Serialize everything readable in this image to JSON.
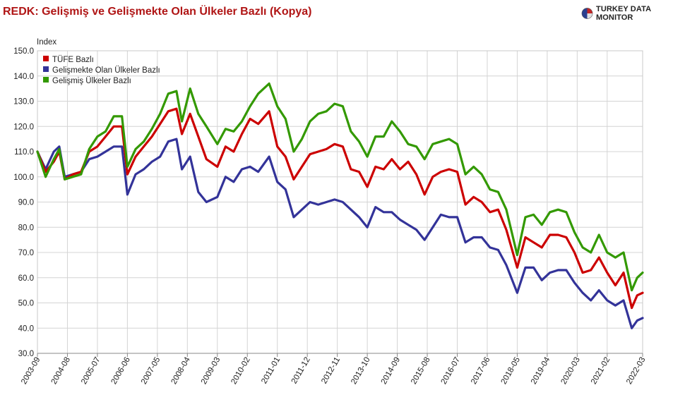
{
  "title": "REDK: Gelişmiş ve Gelişmekte Olan Ülkeler Bazlı (Kopya)",
  "brand": {
    "name": "TURKEY DATA MONITOR",
    "icon": "globe-logo-icon"
  },
  "chart_data": {
    "type": "line",
    "ylabel": "Index",
    "ylim": [
      30,
      150
    ],
    "yticks": [
      "30.0",
      "40.0",
      "50.0",
      "60.0",
      "70.0",
      "80.0",
      "90.0",
      "100.0",
      "110.0",
      "120.0",
      "130.0",
      "140.0",
      "150.0"
    ],
    "x_start": "2003-09",
    "x_end": "2022-03",
    "xticks": [
      "2003-09",
      "2004-08",
      "2005-07",
      "2006-06",
      "2007-05",
      "2008-04",
      "2009-03",
      "2010-02",
      "2011-01",
      "2011-12",
      "2012-11",
      "2013-10",
      "2014-09",
      "2015-08",
      "2016-07",
      "2017-06",
      "2018-05",
      "2019-04",
      "2020-03",
      "2021-02",
      "2022-03"
    ],
    "grid": true,
    "legend_position": "top-left",
    "series": [
      {
        "name": "TÜFE Bazlı",
        "color": "#cc0000",
        "points": [
          [
            "2003-09",
            110
          ],
          [
            "2003-12",
            102
          ],
          [
            "2004-03",
            106
          ],
          [
            "2004-05",
            110
          ],
          [
            "2004-07",
            99
          ],
          [
            "2004-10",
            101
          ],
          [
            "2005-01",
            102
          ],
          [
            "2005-04",
            110
          ],
          [
            "2005-07",
            112
          ],
          [
            "2005-10",
            116
          ],
          [
            "2006-01",
            120
          ],
          [
            "2006-04",
            120
          ],
          [
            "2006-06",
            101
          ],
          [
            "2006-09",
            108
          ],
          [
            "2006-12",
            112
          ],
          [
            "2007-03",
            116
          ],
          [
            "2007-06",
            121
          ],
          [
            "2007-09",
            126
          ],
          [
            "2007-12",
            127
          ],
          [
            "2008-02",
            117
          ],
          [
            "2008-05",
            125
          ],
          [
            "2008-08",
            116
          ],
          [
            "2008-11",
            107
          ],
          [
            "2009-03",
            104
          ],
          [
            "2009-06",
            112
          ],
          [
            "2009-09",
            110
          ],
          [
            "2009-12",
            117
          ],
          [
            "2010-03",
            123
          ],
          [
            "2010-06",
            121
          ],
          [
            "2010-10",
            126
          ],
          [
            "2011-01",
            112
          ],
          [
            "2011-04",
            108
          ],
          [
            "2011-07",
            99
          ],
          [
            "2011-10",
            104
          ],
          [
            "2012-01",
            109
          ],
          [
            "2012-04",
            110
          ],
          [
            "2012-07",
            111
          ],
          [
            "2012-10",
            113
          ],
          [
            "2013-01",
            112
          ],
          [
            "2013-04",
            103
          ],
          [
            "2013-07",
            102
          ],
          [
            "2013-10",
            96
          ],
          [
            "2014-01",
            104
          ],
          [
            "2014-04",
            103
          ],
          [
            "2014-07",
            107
          ],
          [
            "2014-10",
            103
          ],
          [
            "2015-01",
            106
          ],
          [
            "2015-04",
            101
          ],
          [
            "2015-07",
            93
          ],
          [
            "2015-10",
            100
          ],
          [
            "2016-01",
            102
          ],
          [
            "2016-04",
            103
          ],
          [
            "2016-07",
            102
          ],
          [
            "2016-10",
            89
          ],
          [
            "2017-01",
            92
          ],
          [
            "2017-04",
            90
          ],
          [
            "2017-07",
            86
          ],
          [
            "2017-10",
            87
          ],
          [
            "2018-01",
            79
          ],
          [
            "2018-05",
            64
          ],
          [
            "2018-08",
            76
          ],
          [
            "2018-11",
            74
          ],
          [
            "2019-02",
            72
          ],
          [
            "2019-05",
            77
          ],
          [
            "2019-08",
            77
          ],
          [
            "2019-11",
            76
          ],
          [
            "2020-02",
            70
          ],
          [
            "2020-05",
            62
          ],
          [
            "2020-08",
            63
          ],
          [
            "2020-11",
            68
          ],
          [
            "2021-02",
            62
          ],
          [
            "2021-05",
            57
          ],
          [
            "2021-08",
            62
          ],
          [
            "2021-11",
            48
          ],
          [
            "2022-01",
            53
          ],
          [
            "2022-03",
            54
          ]
        ]
      },
      {
        "name": "Gelişmekte Olan Ülkeler Bazlı",
        "color": "#333399",
        "points": [
          [
            "2003-09",
            110
          ],
          [
            "2003-12",
            103
          ],
          [
            "2004-03",
            110
          ],
          [
            "2004-05",
            112
          ],
          [
            "2004-07",
            100
          ],
          [
            "2004-10",
            101
          ],
          [
            "2005-01",
            102
          ],
          [
            "2005-04",
            107
          ],
          [
            "2005-07",
            108
          ],
          [
            "2005-10",
            110
          ],
          [
            "2006-01",
            112
          ],
          [
            "2006-04",
            112
          ],
          [
            "2006-06",
            93
          ],
          [
            "2006-09",
            101
          ],
          [
            "2006-12",
            103
          ],
          [
            "2007-03",
            106
          ],
          [
            "2007-06",
            108
          ],
          [
            "2007-09",
            114
          ],
          [
            "2007-12",
            115
          ],
          [
            "2008-02",
            103
          ],
          [
            "2008-05",
            108
          ],
          [
            "2008-08",
            94
          ],
          [
            "2008-11",
            90
          ],
          [
            "2009-03",
            92
          ],
          [
            "2009-06",
            100
          ],
          [
            "2009-09",
            98
          ],
          [
            "2009-12",
            103
          ],
          [
            "2010-03",
            104
          ],
          [
            "2010-06",
            102
          ],
          [
            "2010-10",
            108
          ],
          [
            "2011-01",
            98
          ],
          [
            "2011-04",
            95
          ],
          [
            "2011-07",
            84
          ],
          [
            "2011-10",
            87
          ],
          [
            "2012-01",
            90
          ],
          [
            "2012-04",
            89
          ],
          [
            "2012-07",
            90
          ],
          [
            "2012-10",
            91
          ],
          [
            "2013-01",
            90
          ],
          [
            "2013-04",
            87
          ],
          [
            "2013-07",
            84
          ],
          [
            "2013-10",
            80
          ],
          [
            "2014-01",
            88
          ],
          [
            "2014-04",
            86
          ],
          [
            "2014-07",
            86
          ],
          [
            "2014-10",
            83
          ],
          [
            "2015-01",
            81
          ],
          [
            "2015-04",
            79
          ],
          [
            "2015-07",
            75
          ],
          [
            "2015-10",
            80
          ],
          [
            "2016-01",
            85
          ],
          [
            "2016-04",
            84
          ],
          [
            "2016-07",
            84
          ],
          [
            "2016-10",
            74
          ],
          [
            "2017-01",
            76
          ],
          [
            "2017-04",
            76
          ],
          [
            "2017-07",
            72
          ],
          [
            "2017-10",
            71
          ],
          [
            "2018-01",
            65
          ],
          [
            "2018-05",
            54
          ],
          [
            "2018-08",
            64
          ],
          [
            "2018-11",
            64
          ],
          [
            "2019-02",
            59
          ],
          [
            "2019-05",
            62
          ],
          [
            "2019-08",
            63
          ],
          [
            "2019-11",
            63
          ],
          [
            "2020-02",
            58
          ],
          [
            "2020-05",
            54
          ],
          [
            "2020-08",
            51
          ],
          [
            "2020-11",
            55
          ],
          [
            "2021-02",
            51
          ],
          [
            "2021-05",
            49
          ],
          [
            "2021-08",
            51
          ],
          [
            "2021-11",
            40
          ],
          [
            "2022-01",
            43
          ],
          [
            "2022-03",
            44
          ]
        ]
      },
      {
        "name": "Gelişmiş Ülkeler Bazlı",
        "color": "#339900",
        "points": [
          [
            "2003-09",
            110
          ],
          [
            "2003-12",
            100
          ],
          [
            "2004-03",
            107
          ],
          [
            "2004-05",
            111
          ],
          [
            "2004-07",
            99
          ],
          [
            "2004-10",
            100
          ],
          [
            "2005-01",
            101
          ],
          [
            "2005-04",
            111
          ],
          [
            "2005-07",
            116
          ],
          [
            "2005-10",
            118
          ],
          [
            "2006-01",
            124
          ],
          [
            "2006-04",
            124
          ],
          [
            "2006-06",
            104
          ],
          [
            "2006-09",
            111
          ],
          [
            "2006-12",
            114
          ],
          [
            "2007-03",
            119
          ],
          [
            "2007-06",
            125
          ],
          [
            "2007-09",
            133
          ],
          [
            "2007-12",
            134
          ],
          [
            "2008-02",
            122
          ],
          [
            "2008-05",
            135
          ],
          [
            "2008-08",
            125
          ],
          [
            "2008-11",
            120
          ],
          [
            "2009-03",
            113
          ],
          [
            "2009-06",
            119
          ],
          [
            "2009-09",
            118
          ],
          [
            "2009-12",
            122
          ],
          [
            "2010-03",
            128
          ],
          [
            "2010-06",
            133
          ],
          [
            "2010-10",
            137
          ],
          [
            "2011-01",
            128
          ],
          [
            "2011-04",
            123
          ],
          [
            "2011-07",
            110
          ],
          [
            "2011-10",
            115
          ],
          [
            "2012-01",
            122
          ],
          [
            "2012-04",
            125
          ],
          [
            "2012-07",
            126
          ],
          [
            "2012-10",
            129
          ],
          [
            "2013-01",
            128
          ],
          [
            "2013-04",
            118
          ],
          [
            "2013-07",
            114
          ],
          [
            "2013-10",
            108
          ],
          [
            "2014-01",
            116
          ],
          [
            "2014-04",
            116
          ],
          [
            "2014-07",
            122
          ],
          [
            "2014-10",
            118
          ],
          [
            "2015-01",
            113
          ],
          [
            "2015-04",
            112
          ],
          [
            "2015-07",
            107
          ],
          [
            "2015-10",
            113
          ],
          [
            "2016-01",
            114
          ],
          [
            "2016-04",
            115
          ],
          [
            "2016-07",
            113
          ],
          [
            "2016-10",
            101
          ],
          [
            "2017-01",
            104
          ],
          [
            "2017-04",
            101
          ],
          [
            "2017-07",
            95
          ],
          [
            "2017-10",
            94
          ],
          [
            "2018-01",
            87
          ],
          [
            "2018-05",
            69
          ],
          [
            "2018-08",
            84
          ],
          [
            "2018-11",
            85
          ],
          [
            "2019-02",
            81
          ],
          [
            "2019-05",
            86
          ],
          [
            "2019-08",
            87
          ],
          [
            "2019-11",
            86
          ],
          [
            "2020-02",
            78
          ],
          [
            "2020-05",
            72
          ],
          [
            "2020-08",
            70
          ],
          [
            "2020-11",
            77
          ],
          [
            "2021-02",
            70
          ],
          [
            "2021-05",
            68
          ],
          [
            "2021-08",
            70
          ],
          [
            "2021-11",
            55
          ],
          [
            "2022-01",
            60
          ],
          [
            "2022-03",
            62
          ]
        ]
      }
    ]
  }
}
